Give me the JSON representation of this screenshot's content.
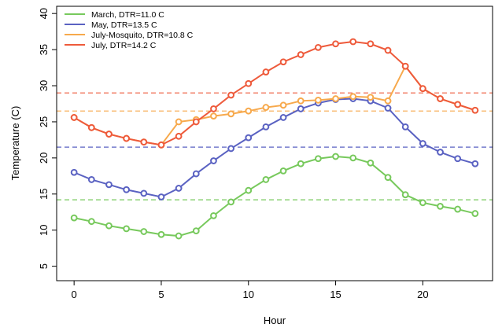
{
  "chart_data": {
    "type": "line",
    "xlabel": "Hour",
    "ylabel": "Temperature (C)",
    "xlim": [
      -1,
      24
    ],
    "ylim": [
      3,
      41
    ],
    "x_ticks": [
      0,
      5,
      10,
      15,
      20
    ],
    "y_ticks": [
      5,
      10,
      15,
      20,
      25,
      30,
      35,
      40
    ],
    "grid": false,
    "legend_position": "top-left",
    "x": [
      0,
      1,
      2,
      3,
      4,
      5,
      6,
      7,
      8,
      9,
      10,
      11,
      12,
      13,
      14,
      15,
      16,
      17,
      18,
      19,
      20,
      21,
      22,
      23
    ],
    "series": [
      {
        "name": "March, DTR=11.0 C",
        "color": "#77c95c",
        "values": [
          11.7,
          11.2,
          10.6,
          10.2,
          9.8,
          9.4,
          9.2,
          9.9,
          12.0,
          13.9,
          15.5,
          17.0,
          18.2,
          19.2,
          19.9,
          20.2,
          20.0,
          19.3,
          17.3,
          14.9,
          13.8,
          13.3,
          12.9,
          12.3
        ],
        "reference_line": 14.2
      },
      {
        "name": "May, DTR=13.5 C",
        "color": "#5a62c2",
        "values": [
          18.0,
          17.0,
          16.3,
          15.6,
          15.1,
          14.6,
          15.8,
          17.8,
          19.6,
          21.3,
          22.8,
          24.3,
          25.6,
          26.8,
          27.6,
          28.1,
          28.2,
          27.9,
          26.9,
          24.3,
          22.0,
          20.8,
          19.9,
          19.2
        ],
        "reference_line": 21.5
      },
      {
        "name": "July-Mosquito, DTR=10.8 C",
        "color": "#f7a94c",
        "values": [
          25.6,
          24.2,
          23.3,
          22.7,
          22.2,
          21.8,
          25.0,
          25.3,
          25.8,
          26.1,
          26.5,
          27.0,
          27.3,
          27.9,
          28.0,
          28.2,
          28.5,
          28.4,
          27.9,
          32.7,
          29.6,
          28.2,
          27.4,
          26.6
        ],
        "reference_line": 26.5
      },
      {
        "name": "July, DTR=14.2 C",
        "color": "#ee5a3b",
        "values": [
          25.6,
          24.2,
          23.3,
          22.7,
          22.2,
          21.8,
          23.0,
          25.0,
          26.8,
          28.7,
          30.3,
          31.9,
          33.3,
          34.3,
          35.3,
          35.8,
          36.1,
          35.8,
          34.9,
          32.7,
          29.6,
          28.2,
          27.4,
          26.6
        ],
        "reference_line": 29.0
      }
    ]
  }
}
